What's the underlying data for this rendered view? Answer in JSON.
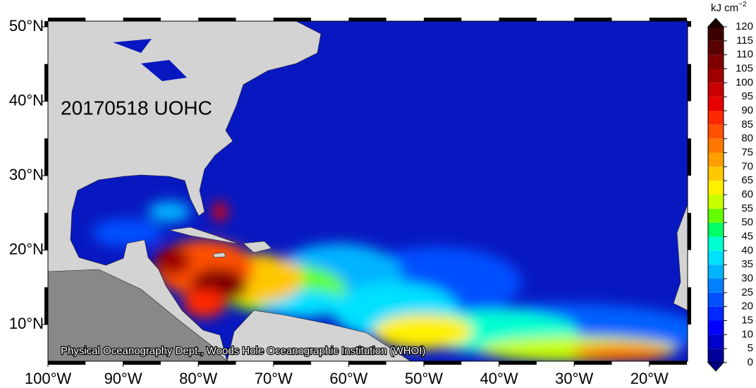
{
  "map": {
    "title": "20170518 UOHC",
    "credit": "Physical Oceanography Dept., Woods Hole Oceanographic Institution (WHOI)",
    "lon_ticks": [
      {
        "value": -100,
        "label": "100°W"
      },
      {
        "value": -90,
        "label": "90°W"
      },
      {
        "value": -80,
        "label": "80°W"
      },
      {
        "value": -70,
        "label": "70°W"
      },
      {
        "value": -60,
        "label": "60°W"
      },
      {
        "value": -50,
        "label": "50°W"
      },
      {
        "value": -40,
        "label": "40°W"
      },
      {
        "value": -30,
        "label": "30°W"
      },
      {
        "value": -20,
        "label": "20°W"
      }
    ],
    "lat_ticks": [
      {
        "value": 10,
        "label": "10°N"
      },
      {
        "value": 20,
        "label": "20°N"
      },
      {
        "value": 30,
        "label": "30°N"
      },
      {
        "value": 40,
        "label": "40°N"
      },
      {
        "value": 50,
        "label": "50°N"
      }
    ]
  },
  "colorbar": {
    "unit": "kJ cm",
    "unit_exponent": "−2",
    "ticks": [
      0,
      5,
      10,
      15,
      20,
      25,
      30,
      35,
      40,
      45,
      50,
      55,
      60,
      65,
      70,
      75,
      80,
      85,
      90,
      95,
      100,
      105,
      110,
      115,
      120
    ],
    "colors": [
      "#00009a",
      "#0000c8",
      "#0000ff",
      "#0028ff",
      "#0050ff",
      "#0080ff",
      "#00b4ff",
      "#00e0ff",
      "#00ffd0",
      "#00ff64",
      "#64ff00",
      "#c8ff00",
      "#fff000",
      "#ffc800",
      "#ffa000",
      "#ff7800",
      "#ff5000",
      "#ff2800",
      "#e60000",
      "#c80000",
      "#a00000",
      "#800000",
      "#5a0000",
      "#3a0000"
    ],
    "under_color": "#00008a",
    "over_color": "#1a0000"
  }
}
